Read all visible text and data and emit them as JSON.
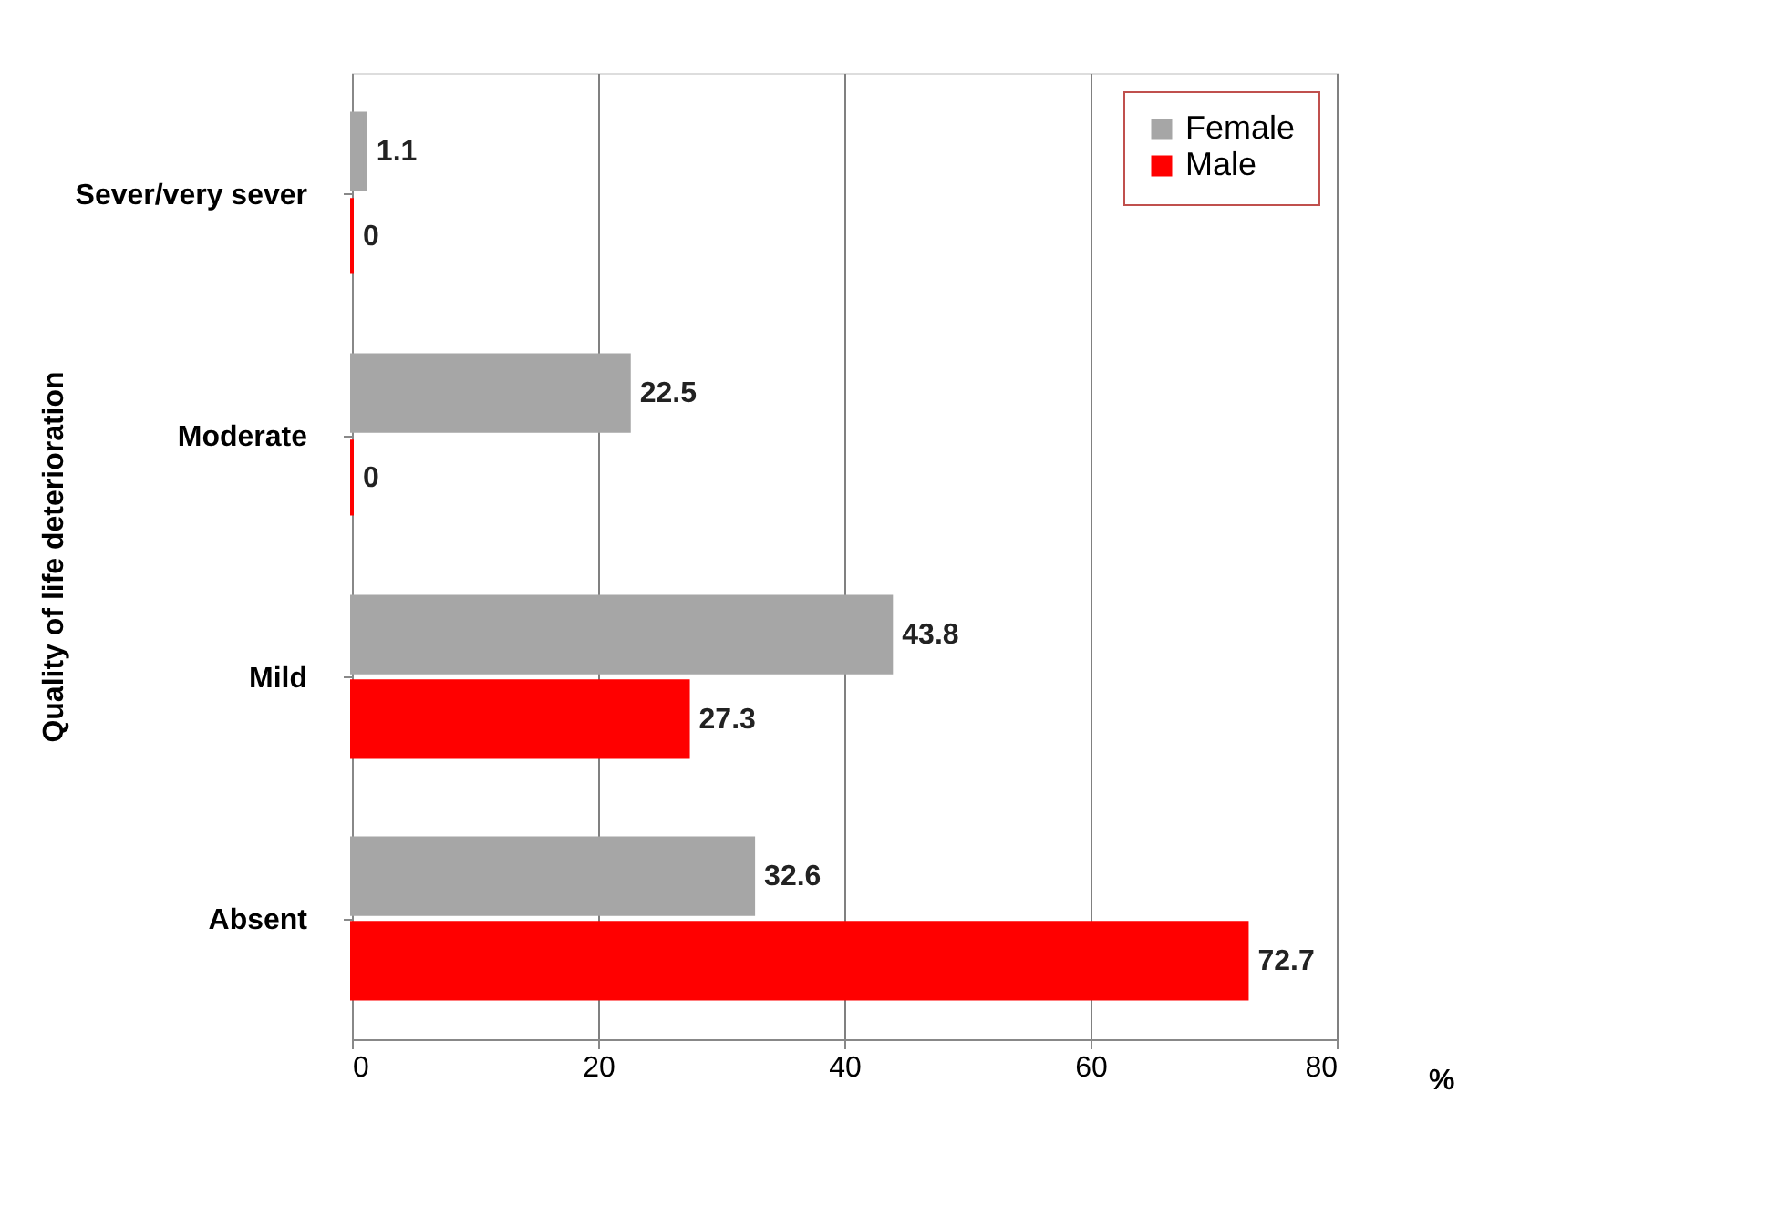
{
  "chart_data": {
    "type": "bar",
    "orientation": "horizontal",
    "categories": [
      "Sever/very sever",
      "Moderate",
      "Mild",
      "Absent"
    ],
    "series": [
      {
        "name": "Female",
        "color": "#a6a6a6",
        "values": [
          1.1,
          22.5,
          43.8,
          32.6
        ]
      },
      {
        "name": "Male",
        "color": "#ff0000",
        "values": [
          0,
          0,
          27.3,
          72.7
        ]
      }
    ],
    "xlabel": "%",
    "ylabel": "Quality of life deterioration",
    "xlim": [
      0,
      80
    ],
    "xticks": [
      0,
      20,
      40,
      60,
      80
    ],
    "grid": "x",
    "legend": "top right",
    "data_labels": true
  }
}
